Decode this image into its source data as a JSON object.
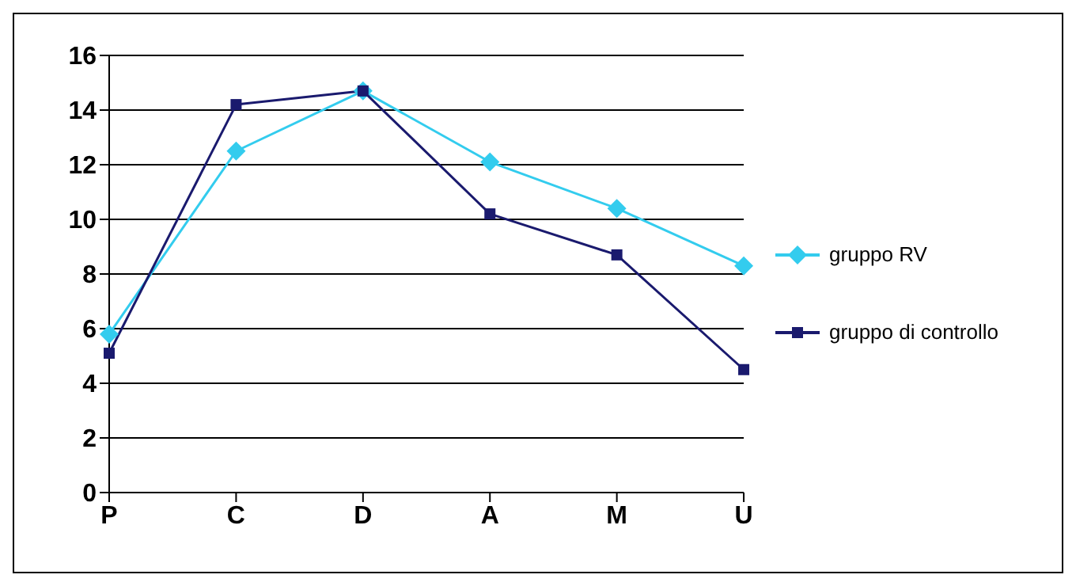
{
  "chart_data": {
    "type": "line",
    "categories": [
      "P",
      "C",
      "D",
      "A",
      "M",
      "U"
    ],
    "series": [
      {
        "name": "gruppo RV",
        "color": "#33ccee",
        "marker": "diamond",
        "values": [
          5.8,
          12.5,
          14.7,
          12.1,
          10.4,
          8.3
        ]
      },
      {
        "name": "gruppo di controllo",
        "color": "#1a1a6e",
        "marker": "square",
        "values": [
          5.1,
          14.2,
          14.7,
          10.2,
          8.7,
          4.5
        ]
      }
    ],
    "ylim": [
      0,
      16
    ],
    "yticks": [
      0,
      2,
      4,
      6,
      8,
      10,
      12,
      14,
      16
    ],
    "grid": "y",
    "legend": "right"
  }
}
